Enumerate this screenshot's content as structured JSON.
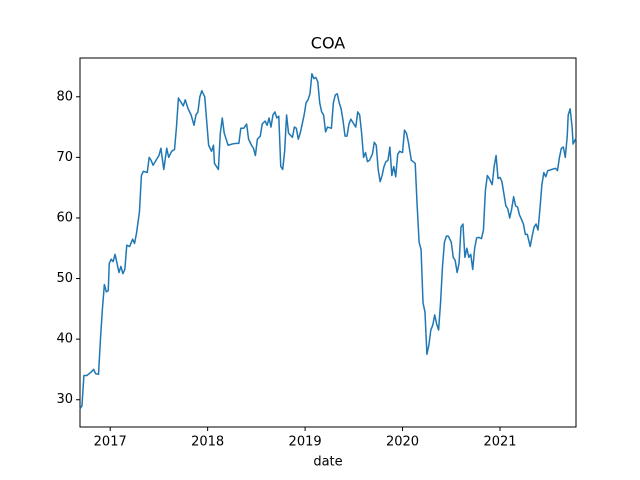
{
  "chart_data": {
    "type": "line",
    "title": "COA",
    "x_label": "date",
    "color": "#1f77b4",
    "x": [
      2016.69,
      2016.71,
      2016.73,
      2016.76,
      2016.8,
      2016.83,
      2016.85,
      2016.88,
      2016.9,
      2016.92,
      2016.94,
      2016.96,
      2016.98,
      2016.99,
      2017.01,
      2017.03,
      2017.05,
      2017.07,
      2017.09,
      2017.11,
      2017.13,
      2017.15,
      2017.17,
      2017.2,
      2017.23,
      2017.25,
      2017.27,
      2017.3,
      2017.32,
      2017.34,
      2017.38,
      2017.4,
      2017.42,
      2017.44,
      2017.47,
      2017.5,
      2017.52,
      2017.55,
      2017.58,
      2017.6,
      2017.63,
      2017.66,
      2017.68,
      2017.7,
      2017.73,
      2017.75,
      2017.77,
      2017.8,
      2017.83,
      2017.86,
      2017.88,
      2017.9,
      2017.92,
      2017.94,
      2017.97,
      2017.99,
      2018.01,
      2018.04,
      2018.06,
      2018.07,
      2018.09,
      2018.11,
      2018.13,
      2018.15,
      2018.17,
      2018.19,
      2018.21,
      2018.25,
      2018.29,
      2018.32,
      2018.34,
      2018.37,
      2018.4,
      2018.42,
      2018.45,
      2018.47,
      2018.49,
      2018.51,
      2018.54,
      2018.56,
      2018.59,
      2018.61,
      2018.63,
      2018.65,
      2018.67,
      2018.69,
      2018.71,
      2018.73,
      2018.75,
      2018.77,
      2018.79,
      2018.81,
      2018.83,
      2018.87,
      2018.89,
      2018.91,
      2018.93,
      2018.95,
      2018.97,
      2018.99,
      2019.01,
      2019.03,
      2019.05,
      2019.07,
      2019.09,
      2019.11,
      2019.13,
      2019.15,
      2019.17,
      2019.19,
      2019.21,
      2019.23,
      2019.27,
      2019.29,
      2019.31,
      2019.33,
      2019.35,
      2019.37,
      2019.39,
      2019.41,
      2019.43,
      2019.45,
      2019.47,
      2019.5,
      2019.52,
      2019.54,
      2019.56,
      2019.58,
      2019.6,
      2019.62,
      2019.64,
      2019.66,
      2019.69,
      2019.71,
      2019.73,
      2019.75,
      2019.77,
      2019.79,
      2019.81,
      2019.83,
      2019.85,
      2019.87,
      2019.89,
      2019.91,
      2019.93,
      2019.95,
      2019.97,
      2020.0,
      2020.02,
      2020.04,
      2020.06,
      2020.09,
      2020.11,
      2020.13,
      2020.15,
      2020.17,
      2020.19,
      2020.21,
      2020.23,
      2020.25,
      2020.27,
      2020.29,
      2020.31,
      2020.33,
      2020.35,
      2020.37,
      2020.39,
      2020.41,
      2020.43,
      2020.45,
      2020.47,
      2020.5,
      2020.52,
      2020.54,
      2020.56,
      2020.58,
      2020.6,
      2020.62,
      2020.64,
      2020.66,
      2020.68,
      2020.7,
      2020.72,
      2020.74,
      2020.76,
      2020.78,
      2020.81,
      2020.83,
      2020.85,
      2020.87,
      2020.89,
      2020.92,
      2020.94,
      2020.96,
      2020.98,
      2021.0,
      2021.02,
      2021.04,
      2021.06,
      2021.08,
      2021.1,
      2021.12,
      2021.14,
      2021.16,
      2021.18,
      2021.2,
      2021.22,
      2021.24,
      2021.26,
      2021.28,
      2021.31,
      2021.33,
      2021.35,
      2021.37,
      2021.39,
      2021.41,
      2021.43,
      2021.45,
      2021.47,
      2021.49,
      2021.53,
      2021.57,
      2021.59,
      2021.61,
      2021.63,
      2021.65,
      2021.67,
      2021.69,
      2021.7,
      2021.72,
      2021.74,
      2021.75,
      2021.78
    ],
    "values": [
      28.5,
      29,
      34,
      34,
      34.5,
      35,
      34.3,
      34.2,
      40,
      45,
      49,
      47.8,
      48,
      52.5,
      53.2,
      52.8,
      54,
      52.5,
      51,
      52,
      50.8,
      51.5,
      55.5,
      55.3,
      56.5,
      55.8,
      57.5,
      61,
      67,
      67.7,
      67.5,
      70,
      69.5,
      68.7,
      69.5,
      70.3,
      71.5,
      68,
      71.5,
      70,
      71,
      71.3,
      75,
      79.8,
      79,
      78.5,
      79.5,
      78,
      77,
      75.3,
      77,
      77.5,
      80,
      81,
      80,
      76,
      72,
      71,
      72,
      69,
      68.5,
      68,
      74,
      76.5,
      74,
      73,
      72,
      72.2,
      72.3,
      72.3,
      74.8,
      74.8,
      75.5,
      73,
      72,
      71.5,
      70.3,
      73,
      73.5,
      75.5,
      76,
      75.3,
      76.5,
      75,
      77,
      77.5,
      76.5,
      76.8,
      68.5,
      68,
      71,
      77,
      74,
      73.3,
      75,
      74.8,
      73,
      74,
      75.5,
      77,
      79,
      79.5,
      80.5,
      83.8,
      83,
      83.2,
      82.5,
      79,
      77.5,
      77,
      74.2,
      75,
      74.8,
      79,
      80.3,
      80.5,
      79,
      78,
      76,
      73.5,
      73.5,
      75.5,
      76.3,
      75.5,
      75,
      77.5,
      77,
      74,
      70,
      70.8,
      69.3,
      69.5,
      70.5,
      72.5,
      72,
      68,
      66,
      67,
      68.5,
      69.3,
      69.5,
      71.7,
      67,
      68.5,
      66.8,
      70.5,
      71,
      70.8,
      74.5,
      74,
      72.5,
      69.5,
      69.3,
      69,
      62,
      56,
      54.8,
      46,
      44.5,
      37.5,
      39,
      41.5,
      42.3,
      44,
      42.5,
      41.5,
      46,
      52,
      56,
      57,
      57,
      56,
      53.5,
      53,
      51,
      52.5,
      58.5,
      59,
      53.5,
      55,
      53.5,
      54,
      51.5,
      55,
      56.7,
      56.8,
      56.6,
      58,
      64.5,
      67,
      66.5,
      65.5,
      68.5,
      70.3,
      66.5,
      66.7,
      66,
      64,
      62,
      61.5,
      60,
      61.5,
      63.5,
      62,
      61.8,
      60.5,
      59.8,
      59,
      57.3,
      57.3,
      55.3,
      57,
      58.5,
      59,
      58,
      61.5,
      65.5,
      67.5,
      66.8,
      67.8,
      68,
      68.2,
      67.8,
      70,
      71.5,
      71.7,
      70,
      73.5,
      77,
      78,
      75,
      72.2,
      73.2
    ],
    "xlim": [
      2016.69,
      2021.78
    ],
    "xticks": [
      2017,
      2018,
      2019,
      2020,
      2021
    ],
    "ylim": [
      25.5,
      86.4
    ],
    "yticks": [
      30,
      40,
      50,
      60,
      70,
      80
    ]
  }
}
